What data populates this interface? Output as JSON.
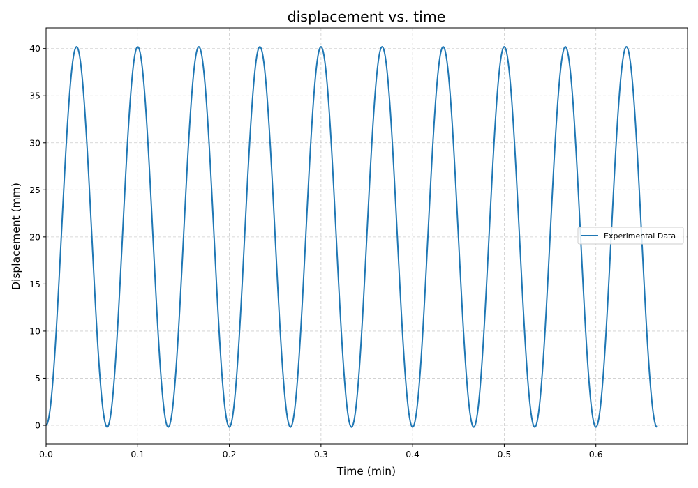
{
  "chart_data": {
    "type": "line",
    "title": "displacement vs. time",
    "xlabel": "Time (min)",
    "ylabel": "Displacement (mm)",
    "xlim": [
      0.0,
      0.7
    ],
    "ylim": [
      -2.0,
      42.2
    ],
    "xticks": [
      0.0,
      0.1,
      0.2,
      0.3,
      0.4,
      0.5,
      0.6
    ],
    "xtick_labels": [
      "0.0",
      "0.1",
      "0.2",
      "0.3",
      "0.4",
      "0.5",
      "0.6"
    ],
    "yticks": [
      0,
      5,
      10,
      15,
      20,
      25,
      30,
      35,
      40
    ],
    "ytick_labels": [
      "0",
      "5",
      "10",
      "15",
      "20",
      "25",
      "30",
      "35",
      "40"
    ],
    "grid": true,
    "legend_position": "center-right",
    "series": [
      {
        "name": "Experimental Data",
        "color": "#1f77b4",
        "x": [
          0.0,
          0.0333,
          0.0667,
          0.1,
          0.1333,
          0.1667,
          0.2,
          0.2333,
          0.2667,
          0.3,
          0.3333,
          0.3667,
          0.4,
          0.4333,
          0.4667,
          0.5,
          0.5333,
          0.5667,
          0.6,
          0.6333,
          0.6667
        ],
        "y": [
          0.0,
          40.2,
          -0.2,
          40.2,
          -0.2,
          40.2,
          -0.2,
          40.2,
          -0.2,
          40.2,
          -0.2,
          40.2,
          -0.2,
          40.2,
          -0.2,
          40.2,
          -0.2,
          40.2,
          -0.2,
          40.2,
          -0.2
        ],
        "shape": "sinusoidal"
      }
    ]
  }
}
